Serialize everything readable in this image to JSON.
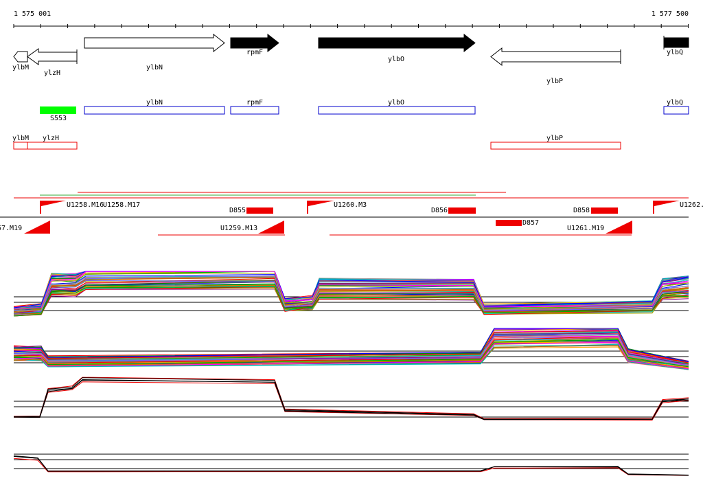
{
  "ruler": {
    "start": "1 575 001",
    "end": "1 577 500"
  },
  "genes": [
    "ylbM",
    "ylzH",
    "ylbN",
    "rpmF",
    "ylbO",
    "ylbP",
    "ylbQ"
  ],
  "features": [
    "ylbN",
    "rpmF",
    "ylbO",
    "ylbQ",
    "S553"
  ],
  "annotations": [
    "ylbM",
    "ylzH",
    "ylbP"
  ],
  "segments": [
    "U1258.M16",
    "U1258.M17",
    "D855",
    "U1260.M3",
    "D856",
    "D858",
    "U1262.",
    "57.M19",
    "U1259.M13",
    "D857",
    "U1261.M19"
  ]
}
